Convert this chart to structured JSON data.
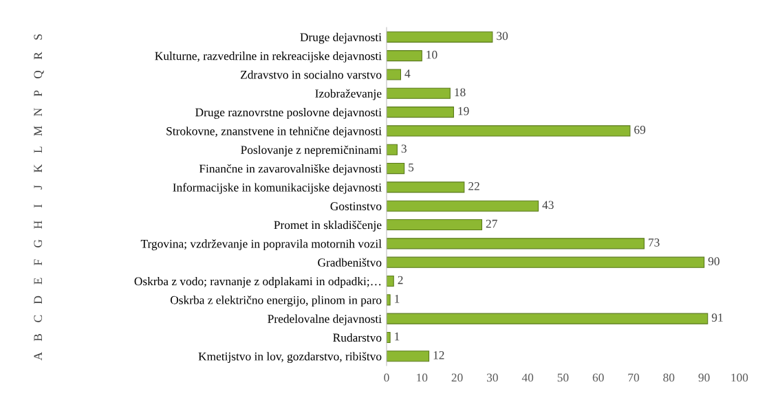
{
  "chart_data": {
    "type": "bar",
    "orientation": "horizontal",
    "categories": [
      "Druge dejavnosti",
      "Kulturne, razvedrilne in rekreacijske dejavnosti",
      "Zdravstvo in socialno varstvo",
      "Izobraževanje",
      "Druge raznovrstne poslovne dejavnosti",
      "Strokovne, znanstvene in tehnične dejavnosti",
      "Poslovanje z nepremičninami",
      "Finančne in zavarovalniške dejavnosti",
      "Informacijske in komunikacijske dejavnosti",
      "Gostinstvo",
      "Promet in skladiščenje",
      "Trgovina; vzdrževanje in popravila motornih vozil",
      "Gradbeništvo",
      "Oskrba z vodo; ravnanje z odplakami in odpadki;…",
      "Oskrba z električno energijo, plinom in paro",
      "Predelovalne dejavnosti",
      "Rudarstvo",
      "Kmetijstvo in lov, gozdarstvo, ribištvo"
    ],
    "y2_categories": [
      "S",
      "R",
      "Q",
      "P",
      "N",
      "M",
      "L",
      "K",
      "J",
      "I",
      "H",
      "G",
      "F",
      "E",
      "D",
      "C",
      "B",
      "A"
    ],
    "values": [
      30,
      10,
      4,
      18,
      19,
      69,
      3,
      5,
      22,
      43,
      27,
      73,
      90,
      2,
      1,
      91,
      1,
      12
    ],
    "color": "#8db832",
    "xlim": [
      0,
      100
    ],
    "xticks": [
      0,
      10,
      20,
      30,
      40,
      50,
      60,
      70,
      80,
      90,
      100
    ],
    "data_labels": true,
    "grid": false,
    "legend": false
  }
}
